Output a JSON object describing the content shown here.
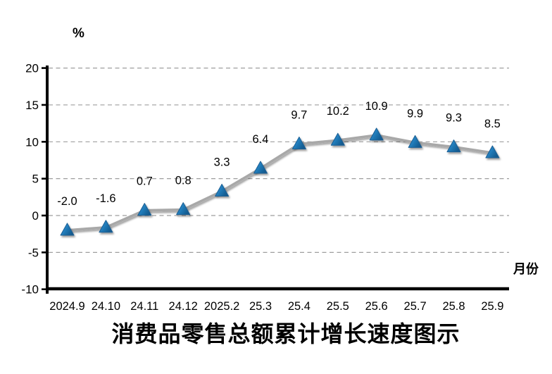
{
  "chart": {
    "y_unit_label": "%",
    "x_unit_label": "月份",
    "title": "消费品零售总额累计增长速度图示"
  },
  "chart_data": {
    "type": "line",
    "title": "消费品零售总额累计增长速度图示",
    "xlabel": "月份",
    "ylabel": "%",
    "categories": [
      "2024.9",
      "24.10",
      "24.11",
      "24.12",
      "2025.2",
      "25.3",
      "25.4",
      "25.5",
      "25.6",
      "25.7",
      "25.8",
      "25.9"
    ],
    "values": [
      -2.0,
      -1.6,
      0.7,
      0.8,
      3.3,
      6.4,
      9.7,
      10.2,
      10.9,
      9.9,
      9.3,
      8.5
    ],
    "ylim": [
      -10,
      20
    ],
    "ytick_step": 5,
    "yticks": [
      20,
      15,
      10,
      5,
      0,
      -5,
      -10
    ],
    "grid": "horizontal-dashed",
    "legend_position": "none",
    "data_labels": true,
    "colors": {
      "line": "#a8a8a8",
      "marker_light": "#5fb0e0",
      "marker_mid": "#2380bf",
      "marker_dark": "#135a8e",
      "marker_stroke": "#1b5e93",
      "gridline": "#9e9e9e",
      "axis": "#000000"
    }
  }
}
